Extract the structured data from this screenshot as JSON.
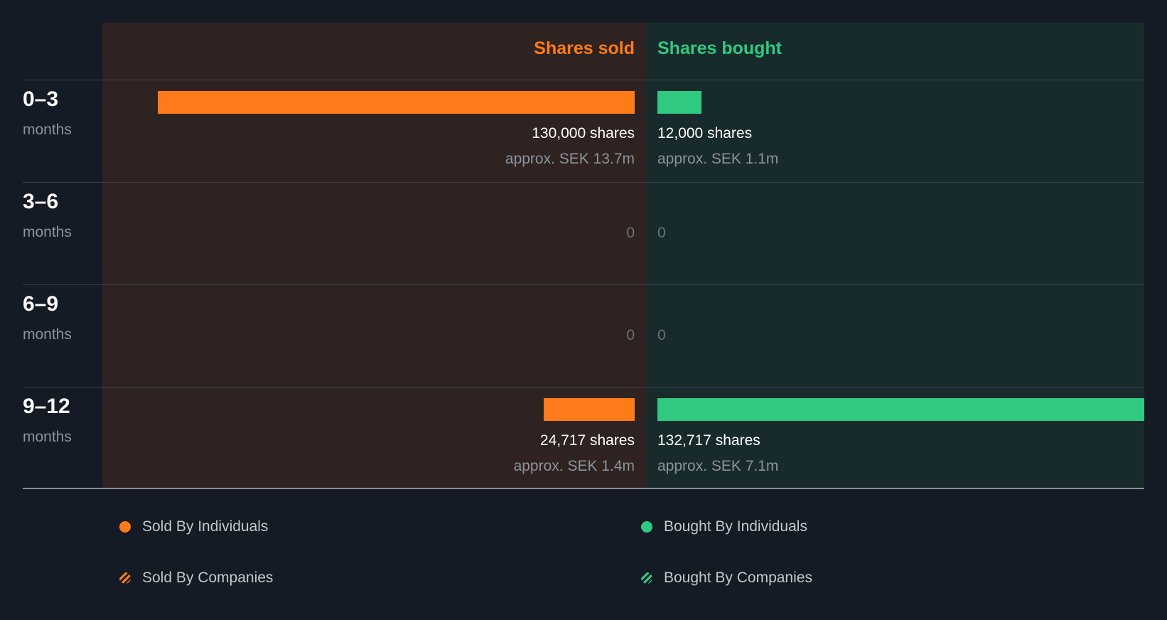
{
  "chart_data": {
    "type": "bar",
    "headers": {
      "sold": "Shares sold",
      "bought": "Shares bought"
    },
    "categories": [
      {
        "range": "0–3",
        "unit": "months"
      },
      {
        "range": "3–6",
        "unit": "months"
      },
      {
        "range": "6–9",
        "unit": "months"
      },
      {
        "range": "9–12",
        "unit": "months"
      }
    ],
    "series": [
      {
        "name": "Shares sold",
        "key": "sold",
        "color": "#ff7b19",
        "values": [
          130000,
          0,
          0,
          24717
        ],
        "labels": [
          "130,000 shares",
          "0",
          "0",
          "24,717 shares"
        ],
        "approx": [
          "approx. SEK 13.7m",
          "",
          "",
          "approx. SEK 1.4m"
        ]
      },
      {
        "name": "Shares bought",
        "key": "bought",
        "color": "#2fc981",
        "values": [
          12000,
          0,
          0,
          132717
        ],
        "labels": [
          "12,000 shares",
          "0",
          "0",
          "132,717 shares"
        ],
        "approx": [
          "approx. SEK 1.1m",
          "",
          "",
          "approx. SEK 7.1m"
        ]
      }
    ],
    "legend": {
      "items": [
        {
          "label": "Sold By Individuals",
          "swatch": "solid-sold"
        },
        {
          "label": "Bought By Individuals",
          "swatch": "solid-bought"
        },
        {
          "label": "Sold By Companies",
          "swatch": "hatch-sold"
        },
        {
          "label": "Bought By Companies",
          "swatch": "hatch-bought"
        }
      ],
      "position": "bottom"
    },
    "colors": {
      "sold": "#ff7b19",
      "bought": "#2fc981",
      "background": "#151b24"
    }
  }
}
